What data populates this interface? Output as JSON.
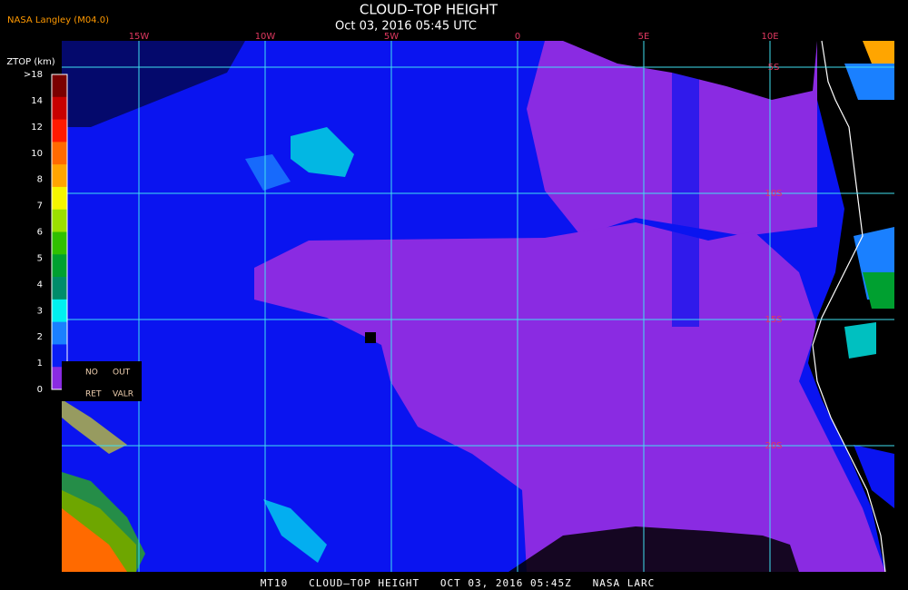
{
  "header": {
    "source": "NASA Langley (M04.0)",
    "title": "CLOUD–TOP HEIGHT",
    "subtitle": "Oct 03, 2016 05:45 UTC"
  },
  "map": {
    "lon_labels": [
      "15W",
      "10W",
      "5W",
      "0",
      "5E",
      "10E"
    ],
    "lat_labels": [
      "5S",
      "10S",
      "15S",
      "20S"
    ]
  },
  "colorbar": {
    "title": "ZTOP (km)",
    "labels": [
      ">18",
      "14",
      "12",
      "10",
      "8",
      "7",
      "6",
      "5",
      "4",
      "3",
      "2",
      "1",
      "0"
    ],
    "colors": [
      "#7a0000",
      "#c80000",
      "#ff1a00",
      "#ff6a00",
      "#ffa500",
      "#f5f500",
      "#9be000",
      "#30c000",
      "#00a030",
      "#008c6a",
      "#00f0f0",
      "#1a80ff",
      "#0a1ef5",
      "#8a2be2"
    ]
  },
  "legend_box": {
    "row1": [
      "NO",
      "OUT"
    ],
    "row2": [
      "RET",
      "VALR"
    ]
  },
  "footer": "MT10   CLOUD–TOP HEIGHT   OCT 03, 2016 05:45Z   NASA LARC"
}
